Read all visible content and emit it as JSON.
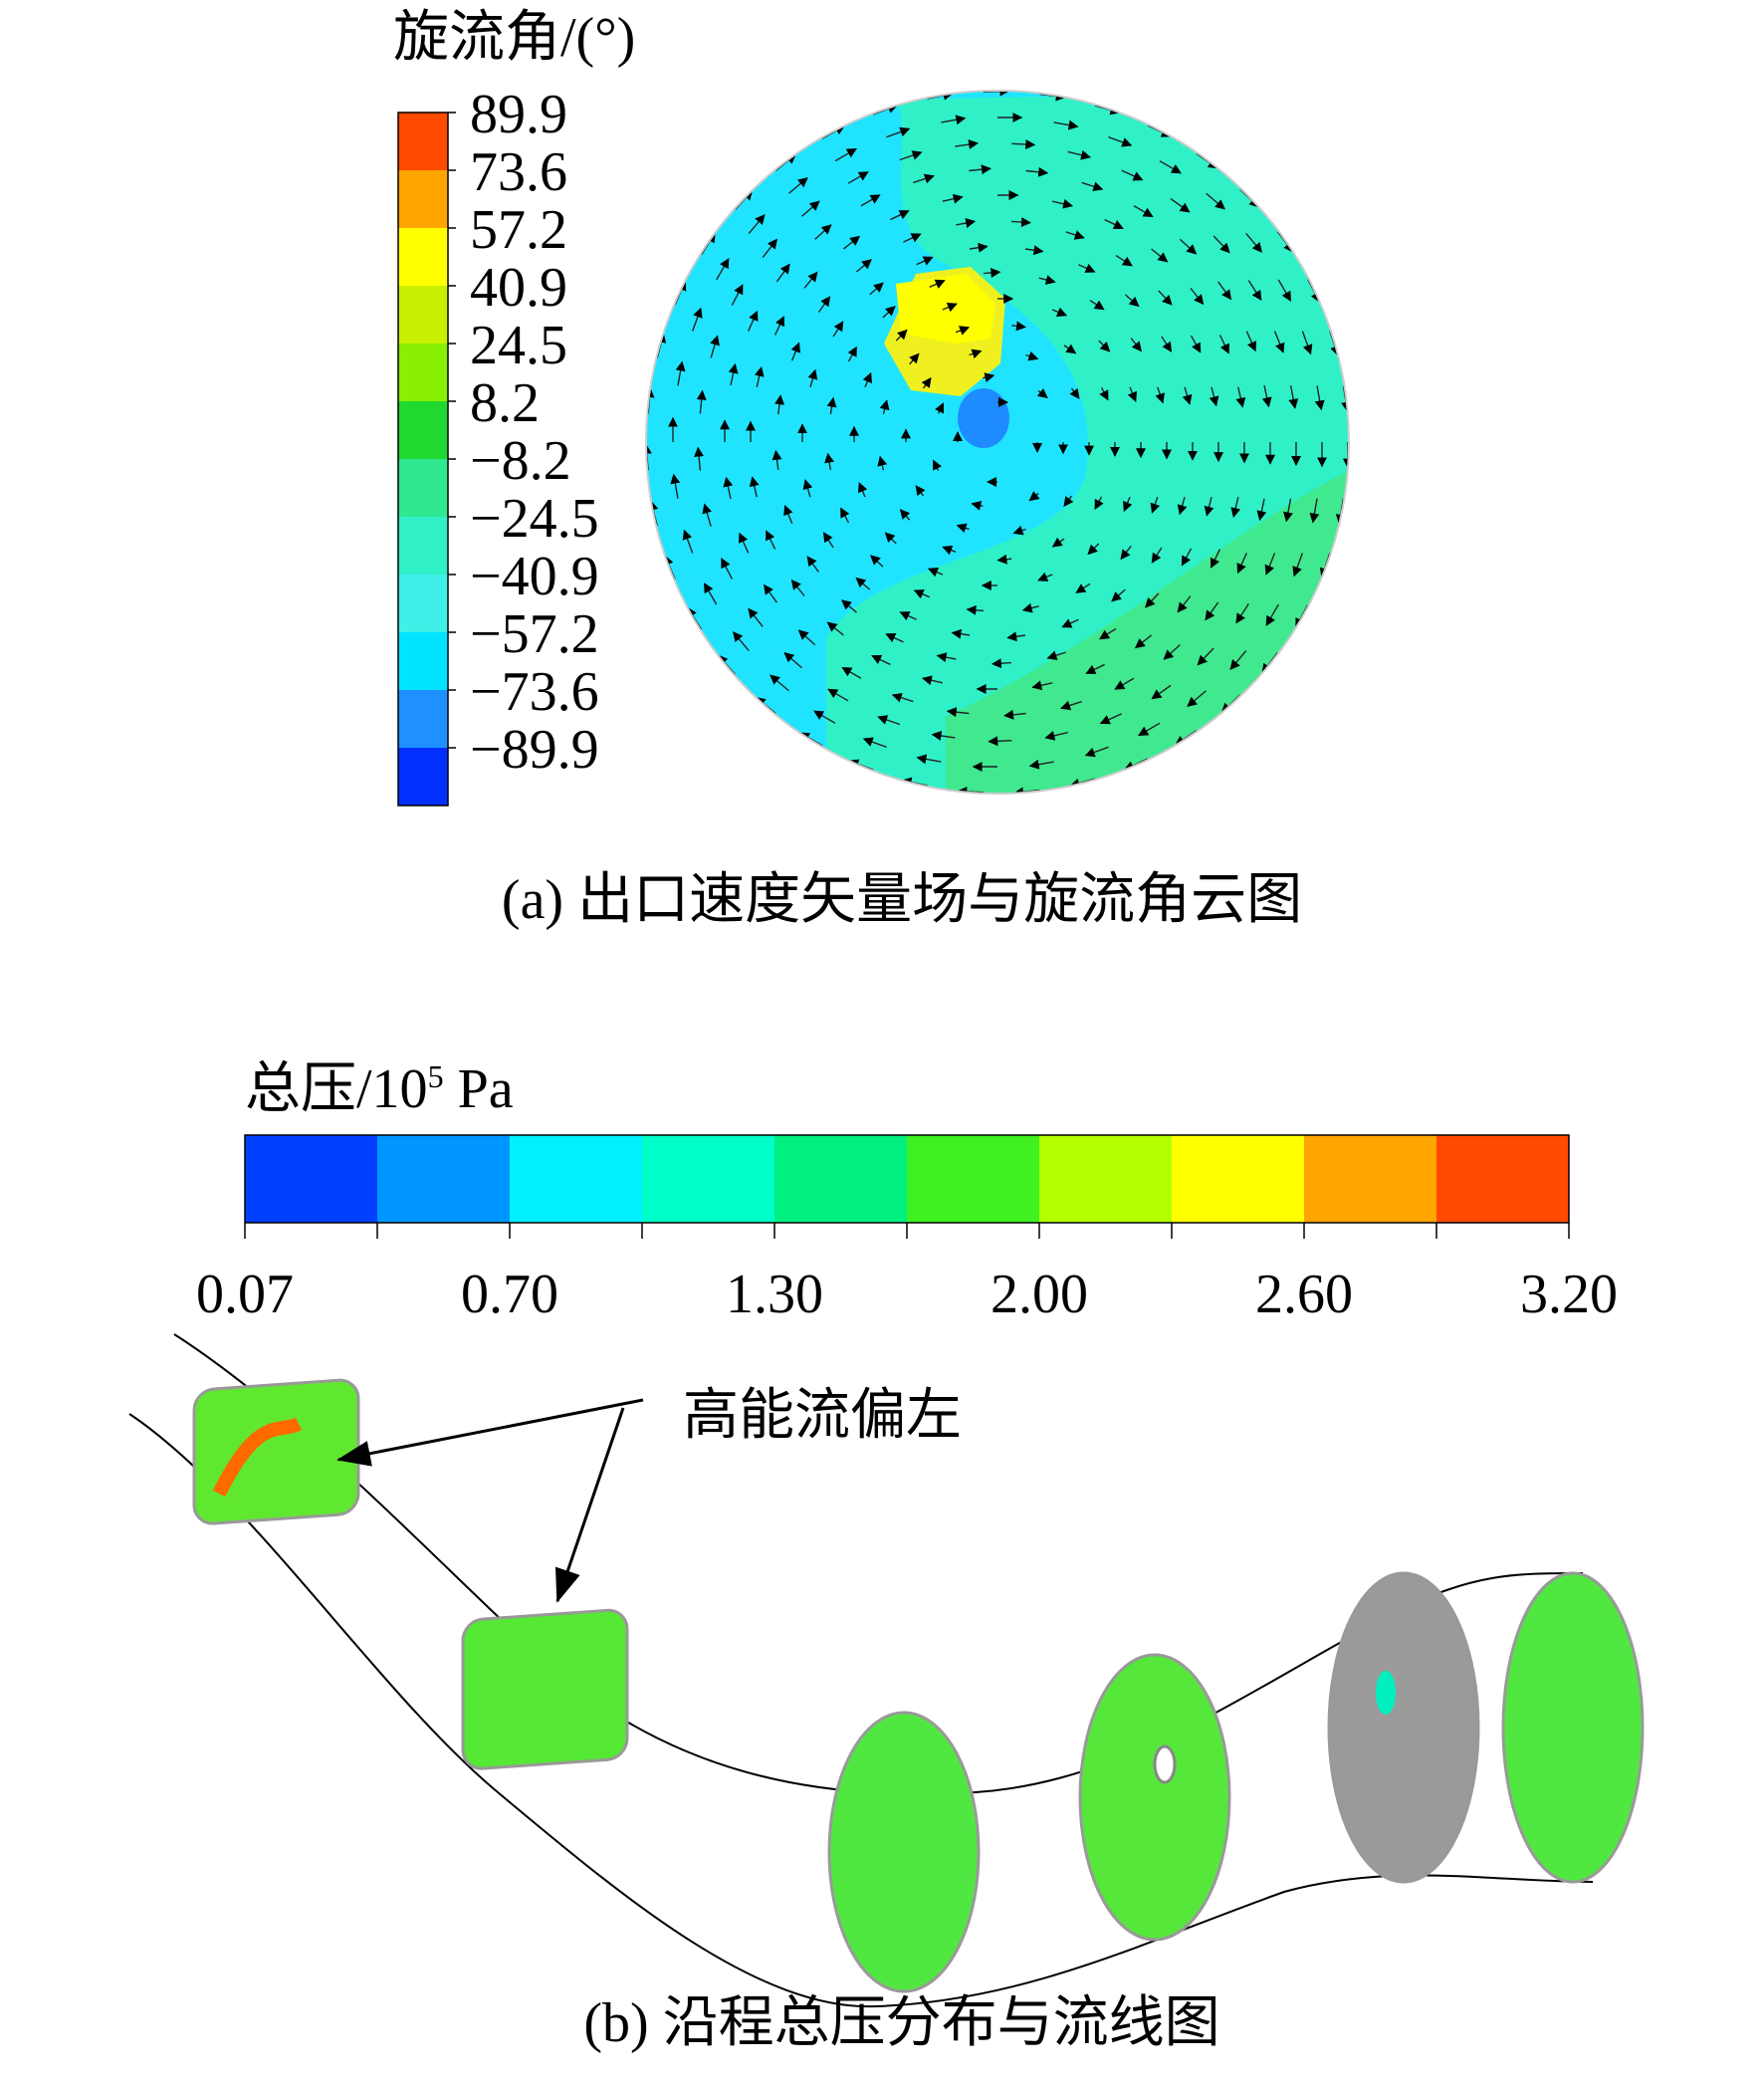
{
  "panel_a": {
    "colorbar_title": "旋流角/(°)",
    "colorbar_labels": [
      "89.9",
      "73.6",
      "57.2",
      "40.9",
      "24.5",
      "8.2",
      "−8.2",
      "−24.5",
      "−40.9",
      "−57.2",
      "−73.6",
      "−89.9"
    ],
    "caption": "(a) 出口速度矢量场与旋流角云图"
  },
  "panel_b": {
    "colorbar_title": "总压/10",
    "colorbar_title_superscript": "5",
    "colorbar_title_unit": "Pa",
    "colorbar_labels": [
      "0.07",
      "0.70",
      "1.30",
      "2.00",
      "2.60",
      "3.20"
    ],
    "annotation": "高能流偏左",
    "caption": "(b) 沿程总压分布与流线图"
  }
}
